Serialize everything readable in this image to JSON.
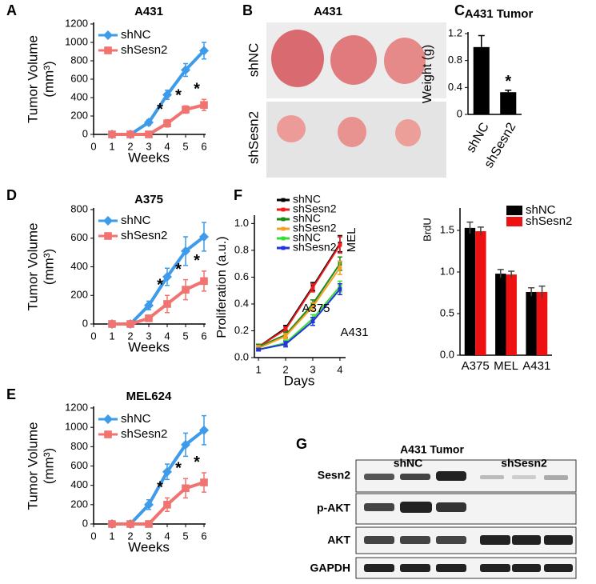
{
  "panel_labels": [
    "A",
    "B",
    "C",
    "D",
    "E",
    "F",
    "G"
  ],
  "photo": {
    "title": "A431",
    "rows": [
      "shNC",
      "shSesn2"
    ]
  },
  "blot": {
    "title": "A431 Tumor",
    "groups": [
      "shNC",
      "shSesn2"
    ],
    "rows": [
      "Sesn2",
      "p-AKT",
      "AKT",
      "GAPDH"
    ]
  },
  "chart_data": [
    {
      "type": "line",
      "title": "A431",
      "xlabel": "Weeks",
      "ylabel": [
        "Tumor Volume",
        "(mm³)"
      ],
      "x": [
        1,
        2,
        3,
        4,
        5,
        6
      ],
      "xlim": [
        0,
        6
      ],
      "xticks": [
        0,
        1,
        2,
        3,
        4,
        5,
        6
      ],
      "ylim": [
        0,
        1200
      ],
      "yticks": [
        0,
        200,
        400,
        600,
        800,
        1000,
        1200
      ],
      "series": [
        {
          "name": "shNC",
          "color": "#3d9be9",
          "marker": "diamond",
          "values": [
            0,
            0,
            130,
            430,
            700,
            910
          ],
          "errors": [
            0,
            0,
            30,
            50,
            70,
            90
          ]
        },
        {
          "name": "shSesn2",
          "color": "#f0736f",
          "marker": "square",
          "values": [
            0,
            0,
            0,
            120,
            270,
            320
          ],
          "errors": [
            0,
            0,
            0,
            40,
            40,
            60
          ]
        }
      ],
      "annotations": [
        {
          "text": "*",
          "x": 4
        },
        {
          "text": "*",
          "x": 5
        },
        {
          "text": "*",
          "x": 6
        }
      ]
    },
    {
      "type": "bar",
      "title": "A431 Tumor",
      "ylabel": "Weight (g)",
      "categories": [
        "shNC",
        "shSesn2"
      ],
      "values": [
        1.0,
        0.33
      ],
      "errors": [
        0.17,
        0.03
      ],
      "color": "#000000",
      "ylim": [
        0,
        1.2
      ],
      "yticks": [
        0,
        0.4,
        0.8,
        1.2
      ],
      "annotations": [
        {
          "text": "*",
          "x": 1
        }
      ]
    },
    {
      "type": "line",
      "title": "A375",
      "xlabel": "Weeks",
      "ylabel": [
        "Tumor Volume",
        "(mm³)"
      ],
      "x": [
        1,
        2,
        3,
        4,
        5,
        6
      ],
      "xlim": [
        0,
        6
      ],
      "xticks": [
        0,
        1,
        2,
        3,
        4,
        5,
        6
      ],
      "ylim": [
        0,
        800
      ],
      "yticks": [
        0,
        200,
        400,
        600,
        800
      ],
      "series": [
        {
          "name": "shNC",
          "color": "#3d9be9",
          "marker": "diamond",
          "values": [
            0,
            0,
            130,
            330,
            510,
            610
          ],
          "errors": [
            0,
            0,
            30,
            60,
            100,
            100
          ]
        },
        {
          "name": "shSesn2",
          "color": "#f0736f",
          "marker": "square",
          "values": [
            0,
            0,
            40,
            140,
            240,
            300
          ],
          "errors": [
            0,
            0,
            20,
            60,
            70,
            70
          ]
        }
      ],
      "annotations": [
        {
          "text": "*",
          "x": 4
        },
        {
          "text": "*",
          "x": 5
        },
        {
          "text": "*",
          "x": 6
        }
      ]
    },
    {
      "type": "line",
      "title": "MEL624",
      "xlabel": "Weeks",
      "ylabel": [
        "Tumor Volume",
        "(mm³)"
      ],
      "x": [
        1,
        2,
        3,
        4,
        5,
        6
      ],
      "xlim": [
        0,
        6
      ],
      "xticks": [
        0,
        1,
        2,
        3,
        4,
        5,
        6
      ],
      "ylim": [
        0,
        1200
      ],
      "yticks": [
        0,
        200,
        400,
        600,
        800,
        1000,
        1200
      ],
      "series": [
        {
          "name": "shNC",
          "color": "#3d9be9",
          "marker": "diamond",
          "values": [
            0,
            0,
            200,
            540,
            820,
            970
          ],
          "errors": [
            0,
            0,
            50,
            80,
            120,
            150
          ]
        },
        {
          "name": "shSesn2",
          "color": "#f0736f",
          "marker": "square",
          "values": [
            0,
            0,
            0,
            200,
            370,
            430
          ],
          "errors": [
            0,
            0,
            0,
            70,
            100,
            100
          ]
        }
      ],
      "annotations": [
        {
          "text": "*",
          "x": 4
        },
        {
          "text": "*",
          "x": 5
        },
        {
          "text": "*",
          "x": 6
        }
      ]
    },
    {
      "type": "line",
      "xlabel": "Days",
      "ylabel": "Proliferation (a.u.)",
      "x": [
        1,
        2,
        3,
        4
      ],
      "xlim": [
        0.85,
        4.15
      ],
      "xticks": [
        1,
        2,
        3,
        4
      ],
      "ylim": [
        0,
        1.05
      ],
      "yticks": [
        {
          "value": 0,
          "label": "0.0"
        },
        0.2,
        0.4,
        0.6,
        0.8,
        {
          "value": 1,
          "label": "1.0"
        }
      ],
      "series": [
        {
          "name": "shNC",
          "color": "#000000",
          "marker": "square",
          "values": [
            0.08,
            0.22,
            0.53,
            0.85
          ],
          "errors": [
            0.02,
            0.02,
            0.03,
            0.06
          ]
        },
        {
          "name": "shSesn2",
          "color": "#ee1c1c",
          "marker": "square",
          "values": [
            0.08,
            0.21,
            0.52,
            0.84
          ],
          "errors": [
            0.02,
            0.02,
            0.03,
            0.06
          ]
        },
        {
          "name": "shNC",
          "color": "#1a8a1a",
          "marker": "square",
          "values": [
            0.08,
            0.17,
            0.4,
            0.7
          ],
          "errors": [
            0.02,
            0.02,
            0.03,
            0.05
          ]
        },
        {
          "name": "shSesn2",
          "color": "#f5a020",
          "marker": "square",
          "values": [
            0.07,
            0.16,
            0.38,
            0.67
          ],
          "errors": [
            0.02,
            0.02,
            0.03,
            0.05
          ]
        },
        {
          "name": "shNC",
          "color": "#33dd33",
          "marker": "square",
          "values": [
            0.06,
            0.11,
            0.29,
            0.53
          ],
          "errors": [
            0.01,
            0.02,
            0.03,
            0.04
          ]
        },
        {
          "name": "shSesn2",
          "color": "#2233dd",
          "marker": "square",
          "values": [
            0.06,
            0.1,
            0.27,
            0.51
          ],
          "errors": [
            0.01,
            0.02,
            0.03,
            0.04
          ]
        }
      ],
      "annotations": [
        {
          "text": "A375"
        },
        {
          "text": "MEL"
        },
        {
          "text": "A431"
        }
      ]
    },
    {
      "type": "groupbar",
      "ylabel": "BrdU",
      "categories": [
        "A375",
        "MEL",
        "A431"
      ],
      "ylim": [
        0,
        1.75
      ],
      "yticks": [
        {
          "value": 0,
          "label": "0.0"
        },
        0.5,
        {
          "value": 1,
          "label": "1.0"
        },
        1.5
      ],
      "series": [
        {
          "name": "shNC",
          "color": "#000000",
          "values": [
            1.53,
            0.98,
            0.76
          ],
          "errors": [
            0.07,
            0.05,
            0.05
          ]
        },
        {
          "name": "shSesn2",
          "color": "#ee1111",
          "values": [
            1.49,
            0.97,
            0.76
          ],
          "errors": [
            0.05,
            0.04,
            0.07
          ]
        }
      ]
    }
  ]
}
